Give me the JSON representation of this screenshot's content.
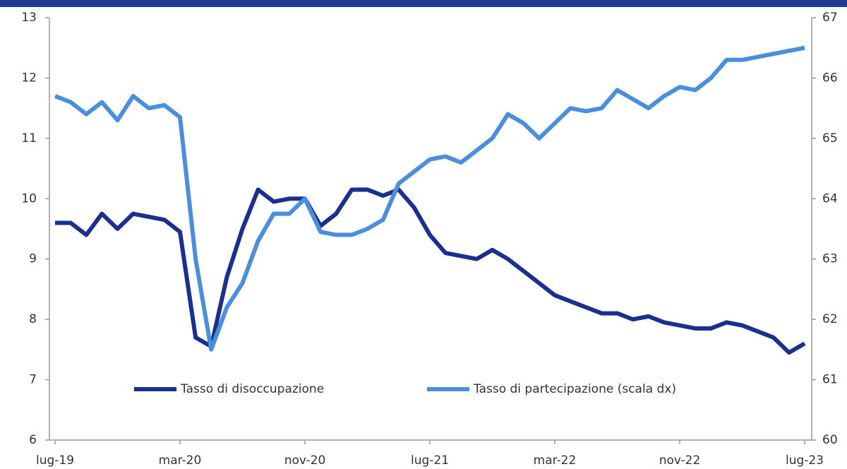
{
  "chart_data": {
    "type": "line",
    "categories": [
      "lug-19",
      null,
      null,
      null,
      null,
      null,
      null,
      null,
      "mar-20",
      null,
      null,
      null,
      null,
      null,
      null,
      null,
      "nov-20",
      null,
      null,
      null,
      null,
      null,
      null,
      null,
      "lug-21",
      null,
      null,
      null,
      null,
      null,
      null,
      null,
      "mar-22",
      null,
      null,
      null,
      null,
      null,
      null,
      null,
      "nov-22",
      null,
      null,
      null,
      null,
      null,
      null,
      null,
      "lug-23"
    ],
    "series": [
      {
        "name": "Tasso di disoccupazione",
        "color": "#1b2f8f",
        "axis": "y",
        "values": [
          9.6,
          9.6,
          9.4,
          9.75,
          9.5,
          9.75,
          9.7,
          9.65,
          9.45,
          7.7,
          7.55,
          8.7,
          9.5,
          10.15,
          9.95,
          10.0,
          10.0,
          9.55,
          9.75,
          10.15,
          10.15,
          10.05,
          10.15,
          9.85,
          9.4,
          9.1,
          9.05,
          9.0,
          9.15,
          9.0,
          8.8,
          8.6,
          8.4,
          8.3,
          8.2,
          8.1,
          8.1,
          8.0,
          8.05,
          7.95,
          7.9,
          7.85,
          7.85,
          7.95,
          7.9,
          7.8,
          7.7,
          7.45,
          7.6
        ]
      },
      {
        "name": "Tasso di partecipazione (scala dx)",
        "color": "#4a8fdc",
        "axis": "y2",
        "values": [
          65.7,
          65.6,
          65.4,
          65.6,
          65.3,
          65.7,
          65.5,
          65.55,
          65.35,
          63.0,
          61.5,
          62.2,
          62.6,
          63.3,
          63.75,
          63.75,
          64.0,
          63.45,
          63.4,
          63.4,
          63.5,
          63.65,
          64.25,
          64.45,
          64.65,
          64.7,
          64.6,
          64.8,
          65.0,
          65.4,
          65.25,
          65.0,
          65.25,
          65.5,
          65.45,
          65.5,
          65.8,
          65.65,
          65.5,
          65.7,
          65.85,
          65.8,
          66.0,
          66.3,
          66.3,
          66.35,
          66.4,
          66.45,
          66.5
        ]
      }
    ],
    "ylim": [
      6,
      13
    ],
    "yticks": [
      6,
      7,
      8,
      9,
      10,
      11,
      12,
      13
    ],
    "y2lim": [
      60,
      67
    ],
    "y2ticks": [
      60,
      61,
      62,
      63,
      64,
      65,
      66,
      67
    ],
    "grid": false
  }
}
